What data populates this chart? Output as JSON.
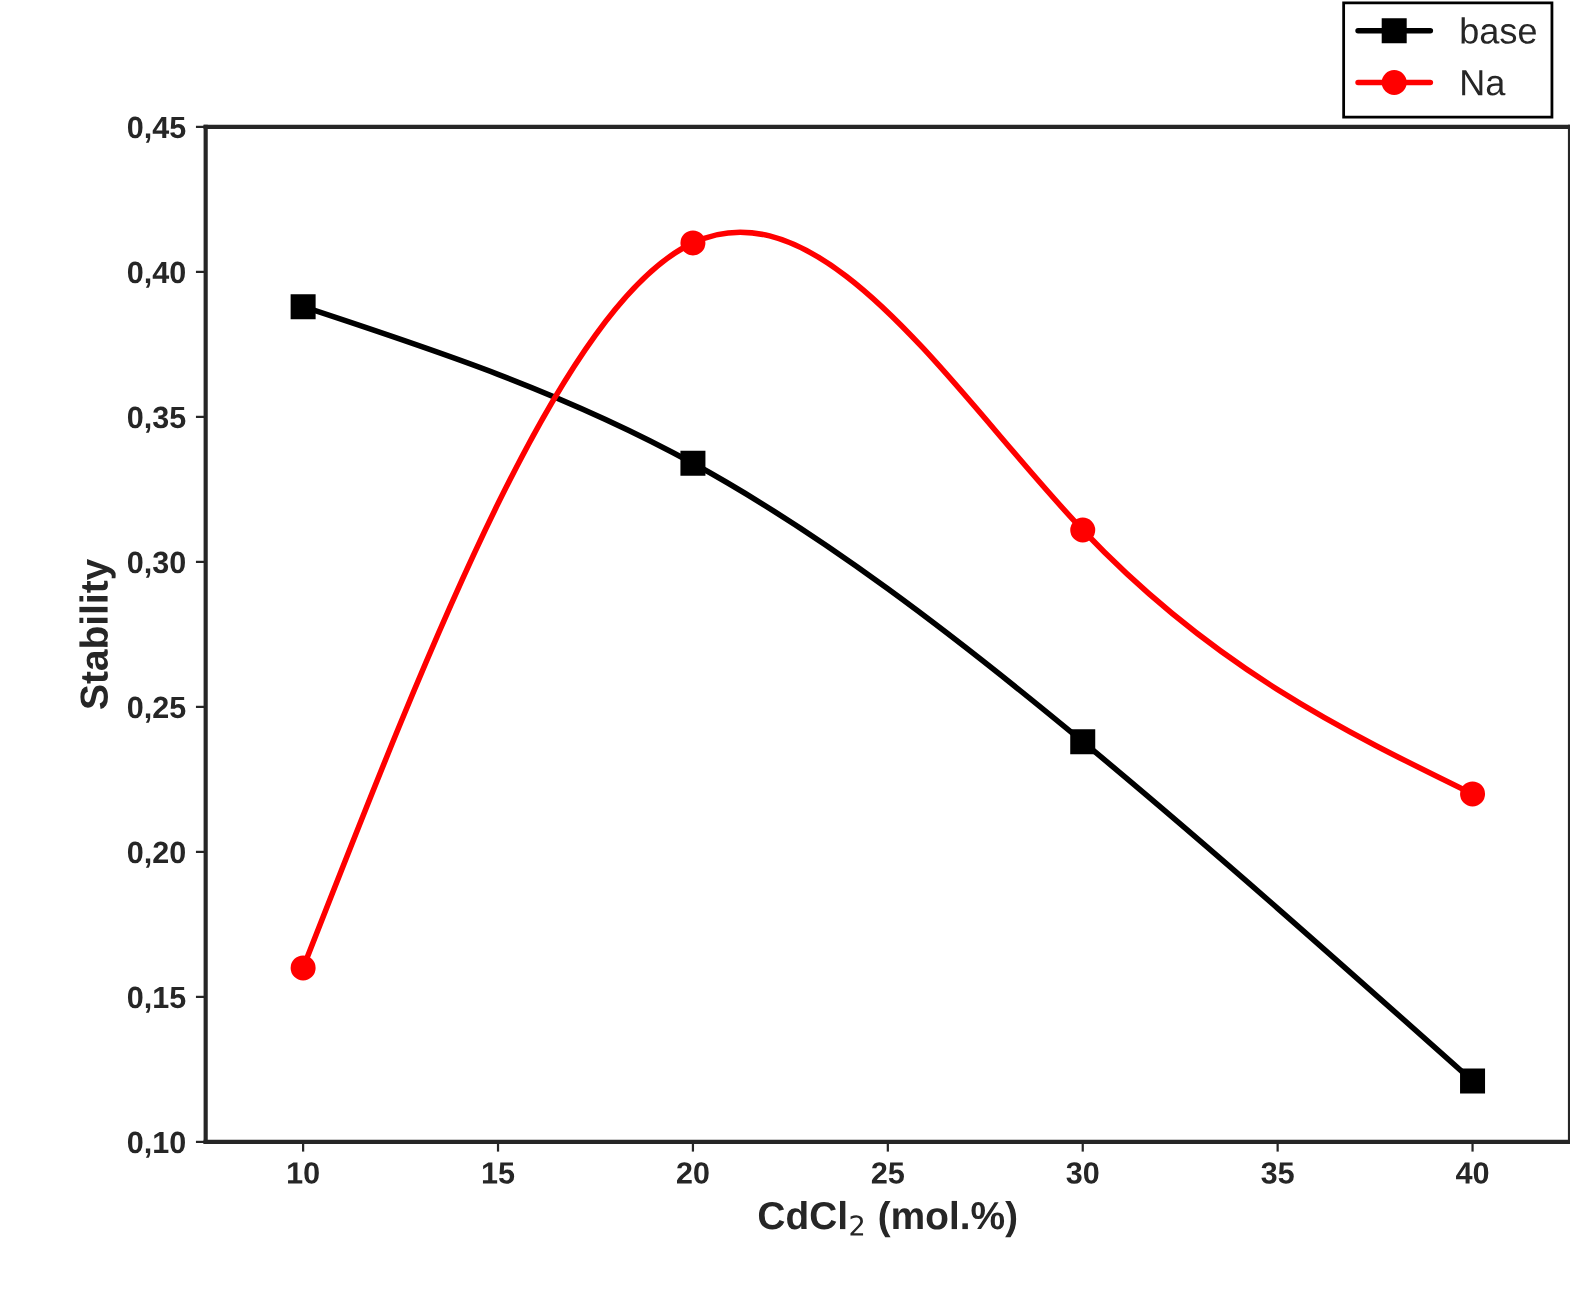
{
  "chart_data": {
    "type": "line",
    "xlabel": "CdCl$_{2}$ (mol.%)",
    "ylabel": "Stability",
    "x": [
      10,
      20,
      30,
      40
    ],
    "series": [
      {
        "name": "base",
        "color": "#000000",
        "marker": "square",
        "values": [
          0.388,
          0.334,
          0.238,
          0.121
        ]
      },
      {
        "name": "Na",
        "color": "#ff0000",
        "marker": "circle",
        "values": [
          0.16,
          0.41,
          0.311,
          0.22
        ]
      }
    ],
    "xlim": [
      7.5,
      42.5
    ],
    "xticks": [
      10,
      15,
      20,
      25,
      30,
      35,
      40
    ],
    "ylim": [
      0.1,
      0.45
    ],
    "yticks": [
      {
        "value": 0.1,
        "label": "0,10"
      },
      {
        "value": 0.15,
        "label": "0,15"
      },
      {
        "value": 0.2,
        "label": "0,20"
      },
      {
        "value": 0.25,
        "label": "0,25"
      },
      {
        "value": 0.3,
        "label": "0,30"
      },
      {
        "value": 0.35,
        "label": "0,35"
      },
      {
        "value": 0.4,
        "label": "0,40"
      },
      {
        "value": 0.45,
        "label": "0,45"
      }
    ],
    "grid": false,
    "legend": "top right",
    "line_style": "solid"
  }
}
